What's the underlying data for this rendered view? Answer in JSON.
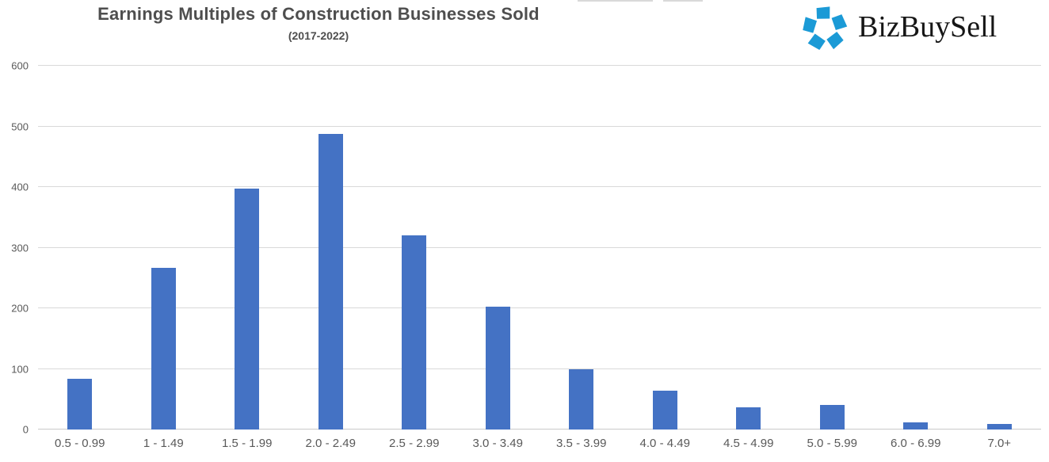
{
  "header": {
    "title": "Earnings Multiples of Construction Businesses Sold",
    "subtitle": "(2017-2022)"
  },
  "logo": {
    "text": "BizBuySell",
    "icon_name": "bizbuysell-pinwheel-icon",
    "icon_color": "#1b9ad6",
    "text_color": "#161616"
  },
  "chart_data": {
    "type": "bar",
    "title": "Earnings Multiples of Construction Businesses Sold",
    "subtitle": "(2017-2022)",
    "categories": [
      "0.5 - 0.99",
      "1 - 1.49",
      "1.5 - 1.99",
      "2.0 - 2.49",
      "2.5 - 2.99",
      "3.0 - 3.49",
      "3.5 - 3.99",
      "4.0 - 4.49",
      "4.5 - 4.99",
      "5.0 - 5.99",
      "6.0 - 6.99",
      "7.0+"
    ],
    "values": [
      84,
      267,
      398,
      488,
      320,
      202,
      100,
      64,
      36,
      41,
      12,
      9
    ],
    "xlabel": "",
    "ylabel": "",
    "ylim": [
      0,
      600
    ],
    "yticks": [
      0,
      100,
      200,
      300,
      400,
      500,
      600
    ],
    "grid": "horizontal gridlines on, every 100",
    "legend": "none",
    "bar_color": "#4472c4",
    "gridline_color": "#d9d9d9",
    "tick_label_color": "#595959",
    "title_color": "#4e4e4e",
    "background_color": "#ffffff"
  }
}
